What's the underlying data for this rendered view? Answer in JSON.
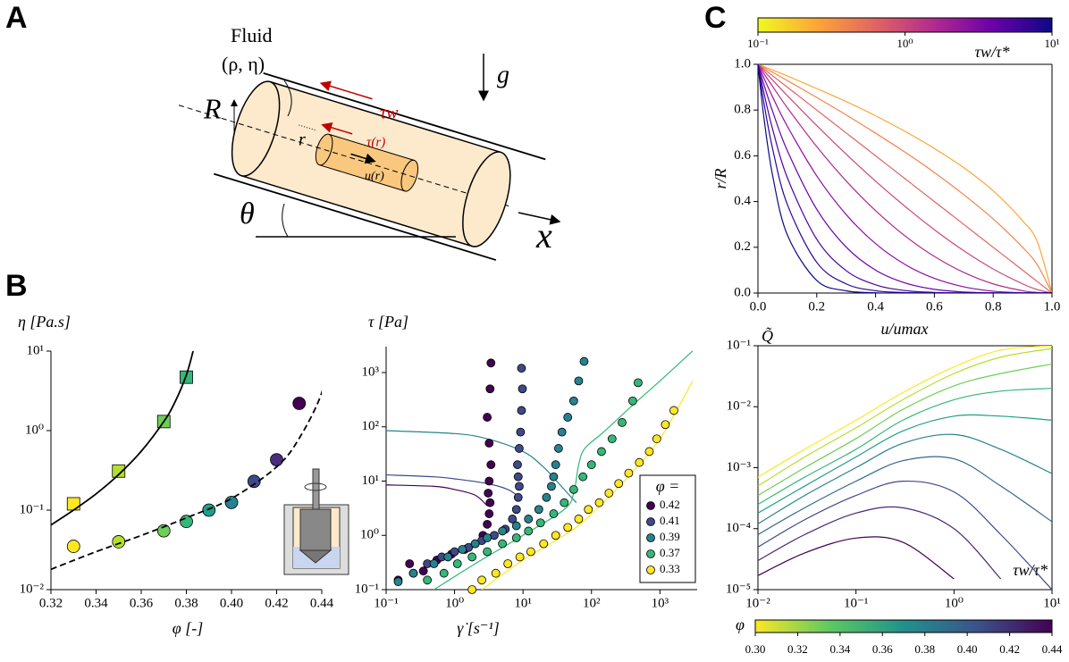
{
  "panel_labels": [
    "A",
    "B",
    "C"
  ],
  "diagram": {
    "fluid": "Fluid",
    "props": "(ρ, η)",
    "R": "R",
    "r": "r",
    "tau_w": "τw",
    "tau_r": "τ(r)",
    "u_r": "u(r)",
    "g": "g",
    "theta": "θ",
    "x": "x"
  },
  "chart_data": [
    {
      "type": "scatter",
      "xlabel": "φ [-]",
      "ylabel": "η [Pa.s]",
      "xscale": "linear",
      "yscale": "log",
      "xlim": [
        0.32,
        0.44
      ],
      "ylim": [
        0.01,
        10
      ],
      "xticks": [
        0.32,
        0.34,
        0.36,
        0.38,
        {
          "value": 0.4,
          "label": "0.40"
        },
        0.42,
        0.44
      ],
      "yticks": [
        {
          "value": 0.01,
          "label": "10⁻²"
        },
        {
          "value": 0.1,
          "label": "10⁻¹"
        },
        {
          "value": 1,
          "label": "10⁰"
        },
        {
          "value": 10,
          "label": "10¹"
        }
      ],
      "series": [
        {
          "marker": "square",
          "x": [
            0.33,
            0.35,
            0.37,
            0.38
          ],
          "values": [
            0.12,
            0.31,
            1.3,
            4.7
          ],
          "colors": [
            "#fde725",
            "#b5de2b",
            "#6ece58",
            "#35b779"
          ]
        },
        {
          "marker": "circle",
          "x": [
            0.33,
            0.35,
            0.37,
            0.38,
            0.39,
            0.4,
            0.41,
            0.42,
            0.43
          ],
          "values": [
            0.035,
            0.04,
            0.055,
            0.072,
            0.1,
            0.125,
            0.23,
            0.43,
            2.2
          ],
          "colors": [
            "#fde725",
            "#b5de2b",
            "#6ece58",
            "#35b779",
            "#1f9e89",
            "#26828e",
            "#3e4989",
            "#472d7b",
            "#440154"
          ]
        },
        {
          "line": "solid",
          "color": "#000000",
          "x": [
            0.32,
            0.33,
            0.34,
            0.35,
            0.36,
            0.37,
            0.375,
            0.38,
            0.383
          ],
          "values": [
            0.065,
            0.1,
            0.16,
            0.28,
            0.55,
            1.3,
            2.3,
            5,
            10
          ]
        },
        {
          "line": "dashed",
          "color": "#000000",
          "x": [
            0.32,
            0.34,
            0.36,
            0.38,
            0.4,
            0.42,
            0.43,
            0.44,
            0.443
          ],
          "values": [
            0.018,
            0.03,
            0.048,
            0.08,
            0.14,
            0.35,
            0.8,
            3,
            10
          ]
        }
      ]
    },
    {
      "type": "scatter",
      "xlabel": "γ̇ [s⁻¹]",
      "ylabel": "τ [Pa]",
      "xscale": "log",
      "yscale": "log",
      "xlim": [
        0.1,
        3500
      ],
      "ylim": [
        0.1,
        3000
      ],
      "xticks": [
        {
          "value": 0.1,
          "label": "10⁻¹"
        },
        {
          "value": 1,
          "label": "10⁰"
        },
        {
          "value": 10,
          "label": "10¹"
        },
        {
          "value": 100,
          "label": "10²"
        },
        {
          "value": 1000,
          "label": "10³"
        }
      ],
      "yticks": [
        {
          "value": 0.1,
          "label": "10⁻¹"
        },
        {
          "value": 1,
          "label": "10⁰"
        },
        {
          "value": 10,
          "label": "10¹"
        },
        {
          "value": 100,
          "label": "10²"
        },
        {
          "value": 1000,
          "label": "10³"
        }
      ],
      "legend": {
        "title": "φ =",
        "loc": "lower right"
      },
      "series": [
        {
          "line": "solid",
          "color": "#440154",
          "x": [
            0.1,
            0.5,
            1,
            2,
            3
          ],
          "values": [
            8.5,
            8,
            7,
            5.5,
            3.5
          ]
        },
        {
          "line": "solid",
          "color": "#3e4989",
          "x": [
            0.1,
            0.5,
            1,
            3,
            6,
            9
          ],
          "values": [
            13,
            12,
            11,
            9,
            7,
            5
          ]
        },
        {
          "line": "solid",
          "color": "#26828e",
          "x": [
            0.1,
            1,
            3,
            10,
            20,
            40,
            60
          ],
          "values": [
            85,
            75,
            60,
            35,
            18,
            7,
            4
          ]
        },
        {
          "line": "solid",
          "color": "#35b779",
          "x": [
            0.5,
            2,
            10,
            40,
            55,
            65,
            80,
            150,
            400,
            1000,
            3000
          ],
          "values": [
            0.1,
            0.3,
            1,
            3,
            6,
            20,
            40,
            80,
            250,
            700,
            2500
          ]
        },
        {
          "line": "solid",
          "color": "#fde725",
          "x": [
            2.5,
            10,
            50,
            100,
            300,
            1000,
            3000
          ],
          "values": [
            0.1,
            0.35,
            1.2,
            2.5,
            10,
            60,
            700
          ]
        },
        {
          "name": "0.42",
          "marker": "circle",
          "color": "#440154",
          "x": [
            0.15,
            0.22,
            0.35,
            0.55,
            0.9,
            1.4,
            2.0,
            2.6,
            3.0,
            3.2,
            3.3,
            3.1,
            3.2,
            3.4,
            3.2,
            3.0,
            3.3,
            3.4
          ],
          "values": [
            0.15,
            0.3,
            0.22,
            0.35,
            0.45,
            0.55,
            0.7,
            1.0,
            1.6,
            2.5,
            4,
            6,
            10,
            20,
            50,
            150,
            500,
            1500
          ]
        },
        {
          "name": "0.41",
          "marker": "circle",
          "color": "#3e4989",
          "x": [
            0.25,
            0.4,
            0.65,
            1.0,
            1.6,
            2.5,
            3.8,
            5.5,
            7.0,
            8.0,
            8.5,
            8.8,
            8.5,
            8.3,
            8.8,
            9.2,
            9.5,
            9.8,
            9.5
          ],
          "values": [
            0.2,
            0.3,
            0.4,
            0.5,
            0.6,
            0.8,
            1.0,
            1.3,
            2,
            3,
            5,
            8,
            12,
            20,
            40,
            80,
            200,
            500,
            1200
          ]
        },
        {
          "name": "0.39",
          "marker": "circle",
          "color": "#26828e",
          "x": [
            0.15,
            0.25,
            0.5,
            0.8,
            1.3,
            2,
            3,
            5,
            8,
            12,
            17,
            22,
            26,
            28,
            30,
            33,
            37,
            45,
            55,
            65,
            78
          ],
          "values": [
            0.14,
            0.2,
            0.3,
            0.4,
            0.55,
            0.7,
            0.9,
            1.2,
            1.5,
            2,
            3,
            5,
            8,
            12,
            20,
            40,
            80,
            150,
            300,
            700,
            1600
          ]
        },
        {
          "name": "0.37",
          "marker": "circle",
          "color": "#35b779",
          "x": [
            0.4,
            0.7,
            1.1,
            1.8,
            3,
            5,
            8,
            12,
            18,
            28,
            40,
            55,
            75,
            100,
            140,
            200,
            280,
            400,
            480
          ],
          "values": [
            0.15,
            0.2,
            0.3,
            0.4,
            0.5,
            0.7,
            0.9,
            1.2,
            1.7,
            2.5,
            4,
            7,
            12,
            20,
            35,
            60,
            120,
            300,
            650
          ]
        },
        {
          "name": "0.33",
          "marker": "circle",
          "color": "#fde725",
          "x": [
            1.8,
            2.5,
            4,
            6,
            9,
            13,
            20,
            30,
            45,
            65,
            90,
            130,
            180,
            250,
            350,
            500,
            700,
            900,
            1200,
            1600
          ],
          "values": [
            0.1,
            0.15,
            0.2,
            0.3,
            0.4,
            0.5,
            0.7,
            1.0,
            1.4,
            2,
            3,
            4,
            6,
            9,
            14,
            22,
            35,
            60,
            110,
            200
          ]
        }
      ]
    },
    {
      "type": "line",
      "xlabel": "u/umax",
      "ylabel": "r/R",
      "xscale": "linear",
      "yscale": "linear",
      "xlim": [
        0,
        1
      ],
      "ylim": [
        0,
        1
      ],
      "xticks": [
        {
          "value": 0,
          "label": "0.0"
        },
        0.2,
        0.4,
        0.6,
        0.8,
        {
          "value": 1,
          "label": "1.0"
        }
      ],
      "yticks": [
        {
          "value": 0,
          "label": "0.0"
        },
        0.2,
        0.4,
        0.6,
        0.8,
        {
          "value": 1,
          "label": "1.0"
        }
      ],
      "colorbar": {
        "label": "τw/τ*",
        "scale": "log",
        "lim": [
          0.1,
          10
        ],
        "ticks": [
          {
            "value": 0.1,
            "label": "10⁻¹"
          },
          {
            "value": 1,
            "label": "10⁰"
          },
          {
            "value": 10,
            "label": "10¹"
          }
        ],
        "colors": [
          "#f0f921",
          "#fca636",
          "#e16462",
          "#b12a90",
          "#6a00a8",
          "#0d0887"
        ]
      },
      "x": [
        0,
        0.02,
        0.05,
        0.1,
        0.2,
        0.3,
        0.4,
        0.5,
        0.6,
        0.7,
        0.8,
        0.9,
        0.95,
        1
      ],
      "series": [
        {
          "line": "solid",
          "color": "#fca636",
          "values": [
            1,
            0.99,
            0.975,
            0.949,
            0.894,
            0.837,
            0.775,
            0.707,
            0.632,
            0.548,
            0.447,
            0.316,
            0.224,
            0
          ]
        },
        {
          "line": "solid",
          "color": "#f2844b",
          "values": [
            1,
            0.986,
            0.965,
            0.929,
            0.855,
            0.779,
            0.699,
            0.616,
            0.527,
            0.43,
            0.324,
            0.2,
            0.123,
            0
          ]
        },
        {
          "line": "solid",
          "color": "#e16462",
          "values": [
            1,
            0.98,
            0.95,
            0.9,
            0.8,
            0.7,
            0.6,
            0.5,
            0.4,
            0.3,
            0.2,
            0.1,
            0.05,
            0
          ]
        },
        {
          "line": "solid",
          "color": "#cc4778",
          "values": [
            1,
            0.972,
            0.931,
            0.863,
            0.732,
            0.607,
            0.489,
            0.379,
            0.277,
            0.185,
            0.105,
            0.04,
            0.015,
            0
          ]
        },
        {
          "line": "solid",
          "color": "#b12a90",
          "values": [
            1,
            0.96,
            0.903,
            0.81,
            0.64,
            0.49,
            0.36,
            0.25,
            0.16,
            0.09,
            0.04,
            0.01,
            0.0025,
            0
          ]
        },
        {
          "line": "solid",
          "color": "#8f0da4",
          "values": [
            1,
            0.941,
            0.857,
            0.729,
            0.512,
            0.343,
            0.216,
            0.125,
            0.064,
            0.027,
            0.008,
            0.001,
            0.0001,
            0
          ]
        },
        {
          "line": "solid",
          "color": "#6a00a8",
          "values": [
            1,
            0.913,
            0.794,
            0.622,
            0.366,
            0.201,
            0.1,
            0.044,
            0.016,
            0.0044,
            0.0007,
            0,
            0,
            0
          ]
        },
        {
          "line": "solid",
          "color": "#4c02a1",
          "values": [
            1,
            0.877,
            0.716,
            0.504,
            0.235,
            0.098,
            0.036,
            0.011,
            0.0026,
            0.0004,
            0,
            0,
            0,
            0
          ]
        },
        {
          "line": "solid",
          "color": "#2c0594",
          "values": [
            1,
            0.834,
            0.63,
            0.387,
            0.134,
            0.04,
            0.01,
            0.002,
            0.0003,
            0,
            0,
            0,
            0,
            0
          ]
        },
        {
          "line": "solid",
          "color": "#0d0887",
          "values": [
            1,
            0.769,
            0.513,
            0.254,
            0.055,
            0.0097,
            0.0013,
            0,
            0,
            0,
            0,
            0,
            0,
            0
          ]
        }
      ]
    },
    {
      "type": "line",
      "xlabel": "τw/τ*",
      "ylabel": "Q̃",
      "xscale": "log",
      "yscale": "log",
      "xlim": [
        0.01,
        10
      ],
      "ylim": [
        1e-05,
        0.1
      ],
      "xticks": [
        {
          "value": 0.01,
          "label": "10⁻²"
        },
        {
          "value": 0.1,
          "label": "10⁻¹"
        },
        {
          "value": 1,
          "label": "10⁰"
        },
        {
          "value": 10,
          "label": "10¹"
        }
      ],
      "yticks": [
        {
          "value": 1e-05,
          "label": "10⁻⁵"
        },
        {
          "value": 0.0001,
          "label": "10⁻⁴"
        },
        {
          "value": 0.001,
          "label": "10⁻³"
        },
        {
          "value": 0.01,
          "label": "10⁻²"
        },
        {
          "value": 0.1,
          "label": "10⁻¹"
        }
      ],
      "colorbar": {
        "label": "φ",
        "scale": "linear",
        "lim": [
          0.3,
          0.44
        ],
        "ticks": [
          {
            "value": 0.3,
            "label": "0.30"
          },
          0.32,
          0.34,
          0.36,
          0.38,
          {
            "value": 0.4,
            "label": "0.40"
          },
          0.42,
          0.44
        ],
        "colors": [
          "#fde725",
          "#5ec962",
          "#21918c",
          "#3b528b",
          "#440154"
        ]
      },
      "x": [
        0.01,
        0.03,
        0.1,
        0.3,
        1,
        3,
        10
      ],
      "series": [
        {
          "line": "solid",
          "color": "#fde725",
          "values": [
            0.0007,
            0.002,
            0.006,
            0.017,
            0.045,
            0.085,
            0.1
          ]
        },
        {
          "line": "solid",
          "color": "#b5de2b",
          "values": [
            0.0005,
            0.0015,
            0.0045,
            0.013,
            0.035,
            0.065,
            0.09
          ]
        },
        {
          "line": "solid",
          "color": "#6ece58",
          "values": [
            0.00035,
            0.001,
            0.003,
            0.009,
            0.022,
            0.035,
            0.05
          ]
        },
        {
          "line": "solid",
          "color": "#35b779",
          "values": [
            0.00025,
            0.0007,
            0.002,
            0.006,
            0.013,
            0.018,
            0.02
          ]
        },
        {
          "line": "solid",
          "color": "#1f9e89",
          "values": [
            0.00018,
            0.0005,
            0.0015,
            0.004,
            0.007,
            0.007,
            0.006
          ]
        },
        {
          "line": "solid",
          "color": "#26828e",
          "values": [
            0.00012,
            0.00035,
            0.001,
            0.0025,
            0.0035,
            0.002,
            0.0008
          ]
        },
        {
          "line": "solid",
          "color": "#31688e",
          "values": [
            8e-05,
            0.00022,
            0.0006,
            0.0013,
            0.0014,
            0.0005,
            0.00013
          ]
        },
        {
          "line": "solid",
          "color": "#3e4989",
          "values": [
            5e-05,
            0.00014,
            0.00035,
            0.0006,
            0.0004,
            8e-05,
            1e-05
          ]
        },
        {
          "line": "solid",
          "color": "#482878",
          "values": [
            3e-05,
            8e-05,
            0.00018,
            0.00022,
            0.0001,
            1.5e-05,
            null
          ]
        },
        {
          "line": "solid",
          "color": "#440154",
          "values": [
            1.7e-05,
            4e-05,
            7e-05,
            6e-05,
            1.5e-05,
            null,
            null
          ]
        }
      ]
    }
  ]
}
